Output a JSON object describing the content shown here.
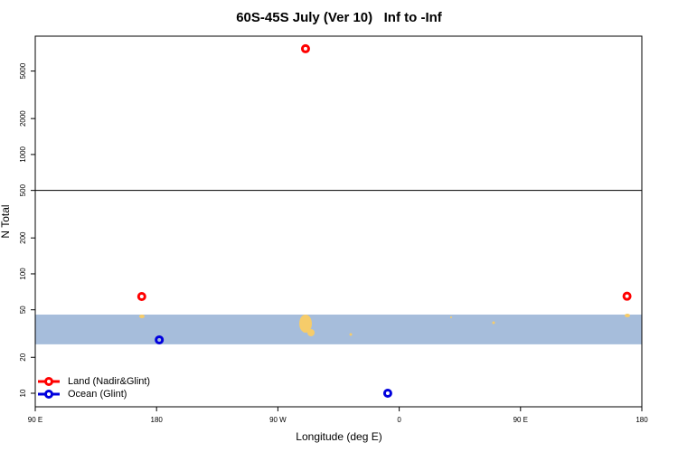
{
  "chart_data": {
    "type": "scatter",
    "title": "60S-45S July (Ver 10)   Inf to -Inf",
    "x_label": "Longitude (deg E)",
    "y_label": "N Total",
    "log_y": true,
    "xlim": [
      90,
      540
    ],
    "ylim": [
      7.7,
      9800
    ],
    "xticks": [
      {
        "value": 90,
        "label": "90 E"
      },
      {
        "value": 180,
        "label": "180"
      },
      {
        "value": 270,
        "label": "90 W"
      },
      {
        "value": 360,
        "label": "0"
      },
      {
        "value": 450,
        "label": "90 E"
      },
      {
        "value": 540,
        "label": "180"
      }
    ],
    "yticks": [
      10,
      20,
      50,
      100,
      200,
      500,
      1000,
      2000,
      5000
    ],
    "hline": 500,
    "band": [
      25.7,
      45.6
    ],
    "band_color": "#a6bddb",
    "legend": "bottom-left",
    "series": [
      {
        "name": "Land (Nadir&Glint)",
        "color": "#ff0000",
        "x": [
          290.5,
          169,
          529
        ],
        "values": [
          7690,
          64.6,
          65
        ]
      },
      {
        "name": "Ocean (Glint)",
        "color": "#0000dd",
        "x": [
          182,
          351.5
        ],
        "values": [
          28,
          10
        ]
      }
    ]
  }
}
